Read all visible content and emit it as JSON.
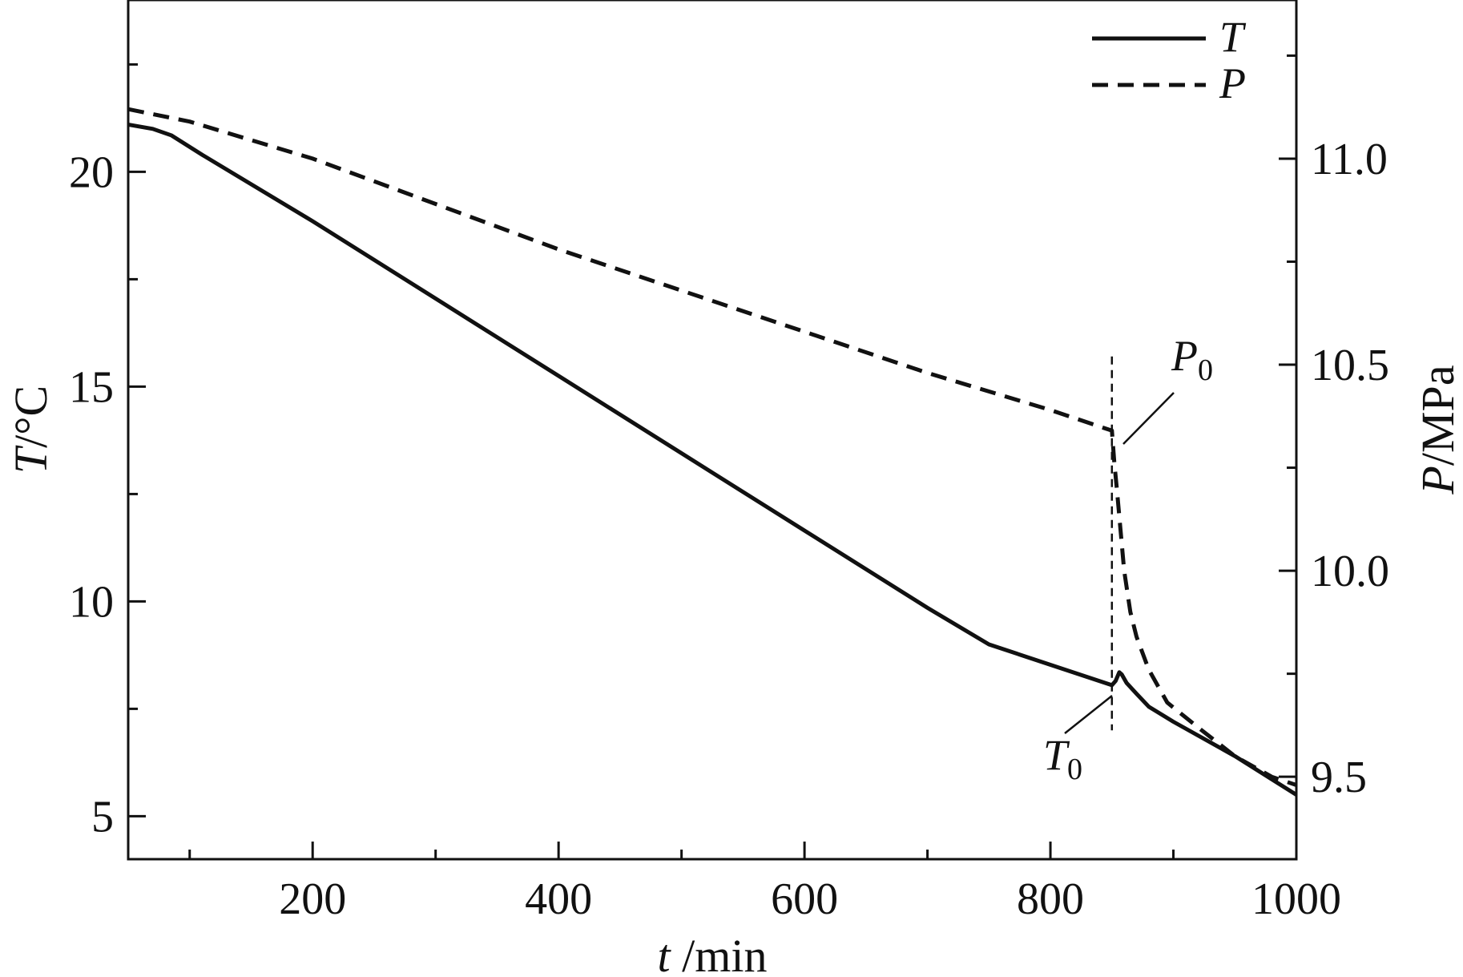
{
  "chart_data": {
    "type": "line",
    "x_axis": {
      "label_var": "t",
      "label_unit": " /min",
      "range": [
        50,
        1000
      ],
      "ticks": [
        {
          "value": 200,
          "label": "200"
        },
        {
          "value": 400,
          "label": "400"
        },
        {
          "value": 600,
          "label": "600"
        },
        {
          "value": 800,
          "label": "800"
        },
        {
          "value": 1000,
          "label": "1000"
        }
      ],
      "minor_ticks": [
        100,
        300,
        500,
        700,
        900
      ]
    },
    "y_left": {
      "label_var": "T",
      "label_unit": "/°C",
      "range": [
        4,
        24
      ],
      "ticks": [
        {
          "value": 5,
          "label": "5"
        },
        {
          "value": 10,
          "label": "10"
        },
        {
          "value": 15,
          "label": "15"
        },
        {
          "value": 20,
          "label": "20"
        }
      ],
      "minor_ticks": [
        7.5,
        12.5,
        17.5,
        22.5
      ]
    },
    "y_right": {
      "label_var": "P",
      "label_unit": "/MPa",
      "range": [
        9.3,
        11.385
      ],
      "ticks": [
        {
          "value": 9.5,
          "label": "9.5"
        },
        {
          "value": 10.0,
          "label": "10.0"
        },
        {
          "value": 10.5,
          "label": "10.5"
        },
        {
          "value": 11.0,
          "label": "11.0"
        }
      ],
      "minor_ticks": [
        9.75,
        10.25,
        10.75,
        11.25
      ]
    },
    "series": [
      {
        "name": "T",
        "axis": "left",
        "style": "solid",
        "color": "#111111",
        "points": [
          [
            50,
            21.1
          ],
          [
            70,
            21.0
          ],
          [
            85,
            20.85
          ],
          [
            110,
            20.4
          ],
          [
            200,
            18.85
          ],
          [
            300,
            17.05
          ],
          [
            400,
            15.25
          ],
          [
            500,
            13.45
          ],
          [
            600,
            11.65
          ],
          [
            700,
            9.85
          ],
          [
            750,
            9.0
          ],
          [
            850,
            8.05
          ],
          [
            853,
            8.15
          ],
          [
            856,
            8.35
          ],
          [
            858,
            8.3
          ],
          [
            862,
            8.1
          ],
          [
            870,
            7.85
          ],
          [
            880,
            7.55
          ],
          [
            900,
            7.2
          ],
          [
            950,
            6.4
          ],
          [
            1000,
            5.5
          ]
        ]
      },
      {
        "name": "P",
        "axis": "right",
        "style": "dashed",
        "color": "#111111",
        "points": [
          [
            50,
            11.12
          ],
          [
            100,
            11.09
          ],
          [
            200,
            11.0
          ],
          [
            300,
            10.89
          ],
          [
            400,
            10.78
          ],
          [
            500,
            10.68
          ],
          [
            600,
            10.58
          ],
          [
            700,
            10.48
          ],
          [
            800,
            10.39
          ],
          [
            850,
            10.34
          ],
          [
            852,
            10.26
          ],
          [
            854,
            10.2
          ],
          [
            857,
            10.1
          ],
          [
            860,
            10.0
          ],
          [
            865,
            9.9
          ],
          [
            870,
            9.84
          ],
          [
            880,
            9.76
          ],
          [
            895,
            9.68
          ],
          [
            920,
            9.62
          ],
          [
            950,
            9.55
          ],
          [
            980,
            9.5
          ],
          [
            1000,
            9.48
          ]
        ]
      }
    ],
    "marker_line": {
      "x": 850
    },
    "annotations": [
      {
        "id": "P0",
        "main": "P",
        "sub": "0",
        "points_to": "pressure drop onset"
      },
      {
        "id": "T0",
        "main": "T",
        "sub": "0",
        "points_to": "temperature minimum before rise"
      }
    ],
    "legend": {
      "position": "top-right",
      "entries": [
        {
          "label": "T",
          "style": "solid"
        },
        {
          "label": "P",
          "style": "dashed"
        }
      ]
    },
    "grid": false
  }
}
